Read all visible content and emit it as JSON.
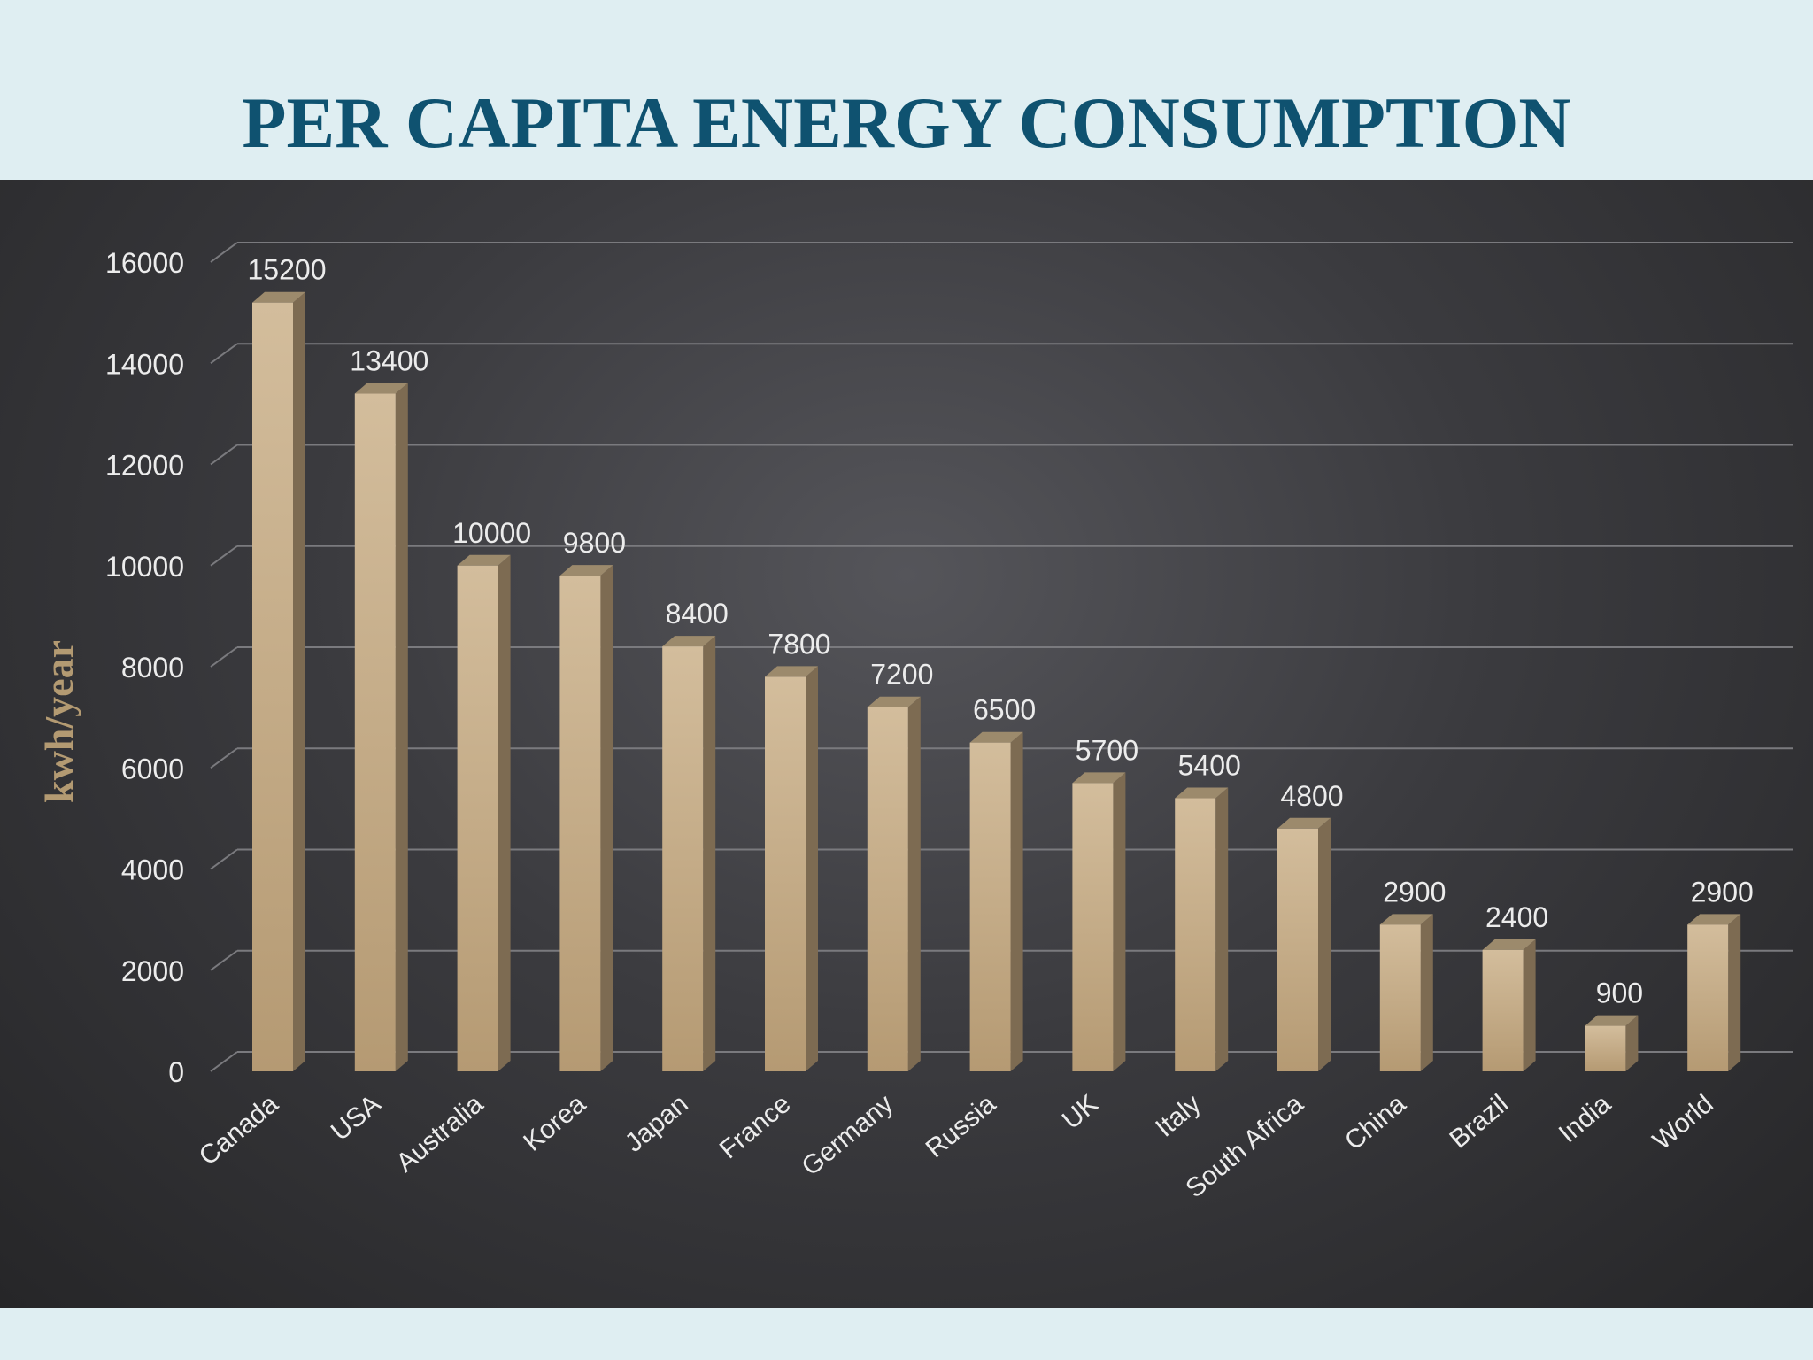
{
  "chart_data": {
    "type": "bar",
    "title": "PER CAPITA ENERGY CONSUMPTION",
    "xlabel": "",
    "ylabel": "kwh/year",
    "ylim": [
      0,
      16000
    ],
    "yticks": [
      0,
      2000,
      4000,
      6000,
      8000,
      10000,
      12000,
      14000,
      16000
    ],
    "grid": true,
    "categories": [
      "Canada",
      "USA",
      "Australia",
      "Korea",
      "Japan",
      "France",
      "Germany",
      "Russia",
      "UK",
      "Italy",
      "South Africa",
      "China",
      "Brazil",
      "India",
      "World"
    ],
    "values": [
      15200,
      13400,
      10000,
      9800,
      8400,
      7800,
      7200,
      6500,
      5700,
      5400,
      4800,
      2900,
      2400,
      900,
      2900
    ],
    "colors": {
      "bar_front": "#c9b08b",
      "bar_side": "#7d6b52",
      "bar_top": "#9c8a6c",
      "grid": "#7a7a7e",
      "text": "#ececec",
      "title": "#0f5270",
      "ylabel": "#b39a72"
    }
  }
}
